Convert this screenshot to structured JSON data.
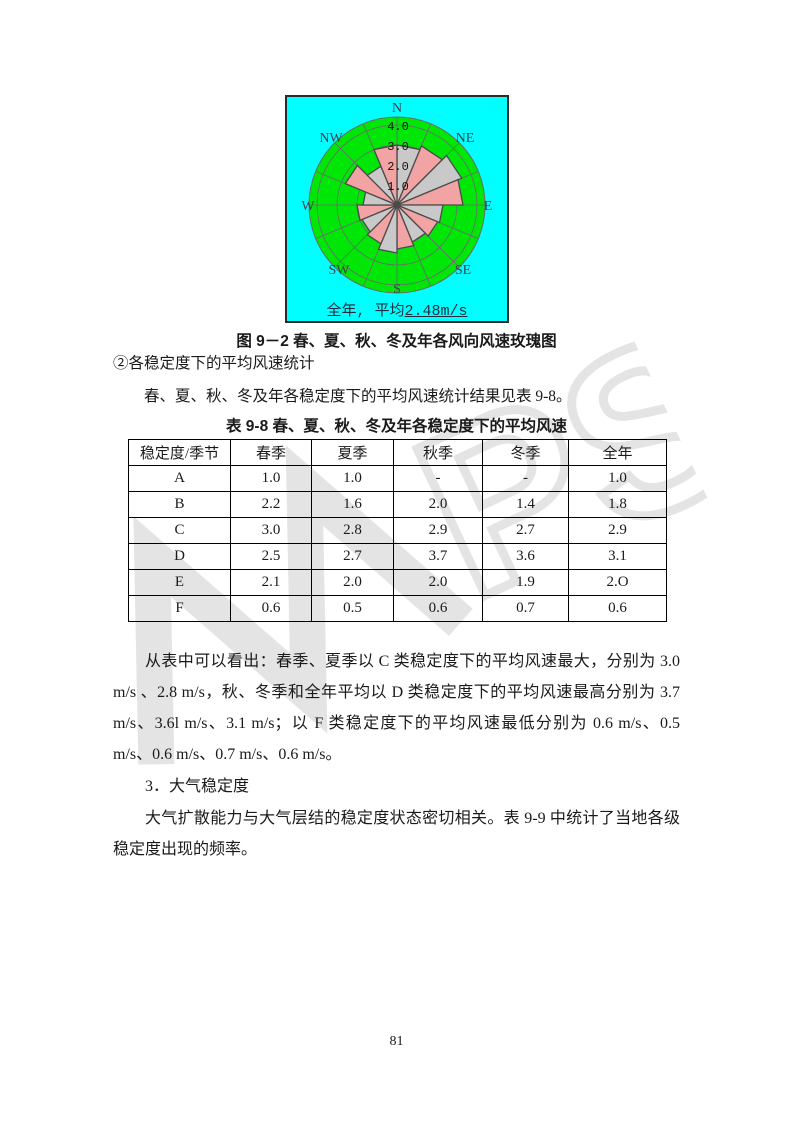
{
  "chart_data": {
    "type": "bar",
    "subtype": "wind-rose-polar-16-sector",
    "annotation": "全年, 平均2.48m/s",
    "annotation_prefix": "全年, 平均",
    "annotation_value": "2.48m/s",
    "avg_wind_speed_mps": 2.48,
    "ring_ticks": [
      "1.0",
      "2.0",
      "3.0",
      "4.0"
    ],
    "compass_labels": [
      "N",
      "NE",
      "E",
      "SE",
      "S",
      "SW",
      "W",
      "NW"
    ],
    "sectors": [
      "N-NNE",
      "NNE-NE",
      "NE-ENE",
      "ENE-E",
      "E-ESE",
      "ESE-SE",
      "SE-SSE",
      "SSE-S",
      "S-SSW",
      "SSW-SW",
      "SW-WSW",
      "WSW-W",
      "W-WNW",
      "WNW-NW",
      "NW-NNW",
      "NNW-N"
    ],
    "values": [
      3.0,
      3.2,
      3.5,
      3.3,
      2.3,
      2.2,
      2.0,
      2.2,
      2.4,
      2.1,
      1.9,
      2.0,
      1.7,
      2.8,
      2.1,
      3.0
    ],
    "rlim": [
      0,
      4.0
    ],
    "colors": {
      "box_background": "#00ffff",
      "field": "#00e606",
      "petal_gray": "#c9c9c9",
      "petal_pink": "#f2a3a3",
      "grid": "#6a6a6a",
      "petal_outline": "#4a4a4a",
      "label": "#39434f"
    }
  },
  "figure_caption": "图 9－2  春、夏、秋、冬及年各风向风速玫瑰图",
  "sub_heading": "②各稳定度下的平均风速统计",
  "lead_text": "春、夏、秋、冬及年各稳定度下的平均风速统计结果见表 9-8。",
  "table": {
    "title": "表 9-8  春、夏、秋、冬及年各稳定度下的平均风速",
    "headers": [
      "稳定度/季节",
      "春季",
      "夏季",
      "秋季",
      "冬季",
      "全年"
    ],
    "rows": [
      {
        "label": "A",
        "values": [
          "1.0",
          "1.0",
          "-",
          "-",
          "1.0"
        ]
      },
      {
        "label": "B",
        "values": [
          "2.2",
          "1.6",
          "2.0",
          "1.4",
          "1.8"
        ]
      },
      {
        "label": "C",
        "values": [
          "3.0",
          "2.8",
          "2.9",
          "2.7",
          "2.9"
        ]
      },
      {
        "label": "D",
        "values": [
          "2.5",
          "2.7",
          "3.7",
          "3.6",
          "3.1"
        ]
      },
      {
        "label": "E",
        "values": [
          "2.1",
          "2.0",
          "2.0",
          "1.9",
          "2.O"
        ]
      },
      {
        "label": "F",
        "values": [
          "0.6",
          "0.5",
          "0.6",
          "0.7",
          "0.6"
        ]
      }
    ]
  },
  "paragraph1": "从表中可以看出：春季、夏季以 C 类稳定度下的平均风速最大，分别为 3.0 m/s 、2.8 m/s，秋、冬季和全年平均以 D 类稳定度下的平均风速最高分别为 3.7 m/s、3.6l m/s、3.1 m/s；以 F 类稳定度下的平均风速最低分别为 0.6 m/s、0.5 m/s、0.6 m/s、0.7 m/s、0.6 m/s。",
  "heading3": "3．大气稳定度",
  "paragraph2": "大气扩散能力与大气层结的稳定度状态密切相关。表 9-9 中统计了当地各级稳定度出现的频率。",
  "page_number": "81",
  "watermark_text": "WPS"
}
